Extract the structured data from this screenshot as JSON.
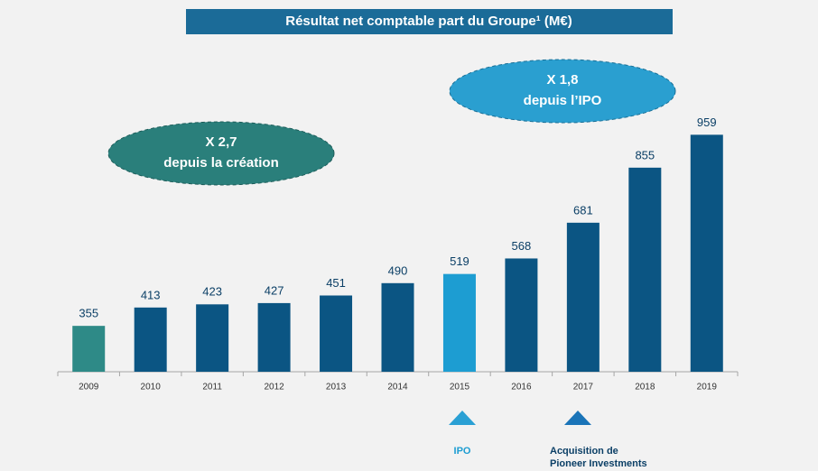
{
  "chart_data": {
    "type": "bar",
    "title": "Résultat net comptable part du Groupe¹ (M€)",
    "categories": [
      "2009",
      "2010",
      "2011",
      "2012",
      "2013",
      "2014",
      "2015",
      "2016",
      "2017",
      "2018",
      "2019"
    ],
    "values": [
      355,
      413,
      423,
      427,
      451,
      490,
      519,
      568,
      681,
      855,
      959
    ],
    "colors": [
      "#2e8a87",
      "#0b5583",
      "#0b5583",
      "#0b5583",
      "#0b5583",
      "#0b5583",
      "#1d9dd2",
      "#0b5583",
      "#0b5583",
      "#0b5583",
      "#0b5583"
    ],
    "ylim": [
      210,
      960
    ],
    "annotations": {
      "creation": [
        "X 2,7",
        "depuis la création"
      ],
      "ipo_growth": [
        "X 1,8",
        "depuis l’IPO"
      ],
      "ipo": "IPO",
      "pioneer": [
        "Acquisition de",
        "Pioneer Investments"
      ]
    }
  }
}
